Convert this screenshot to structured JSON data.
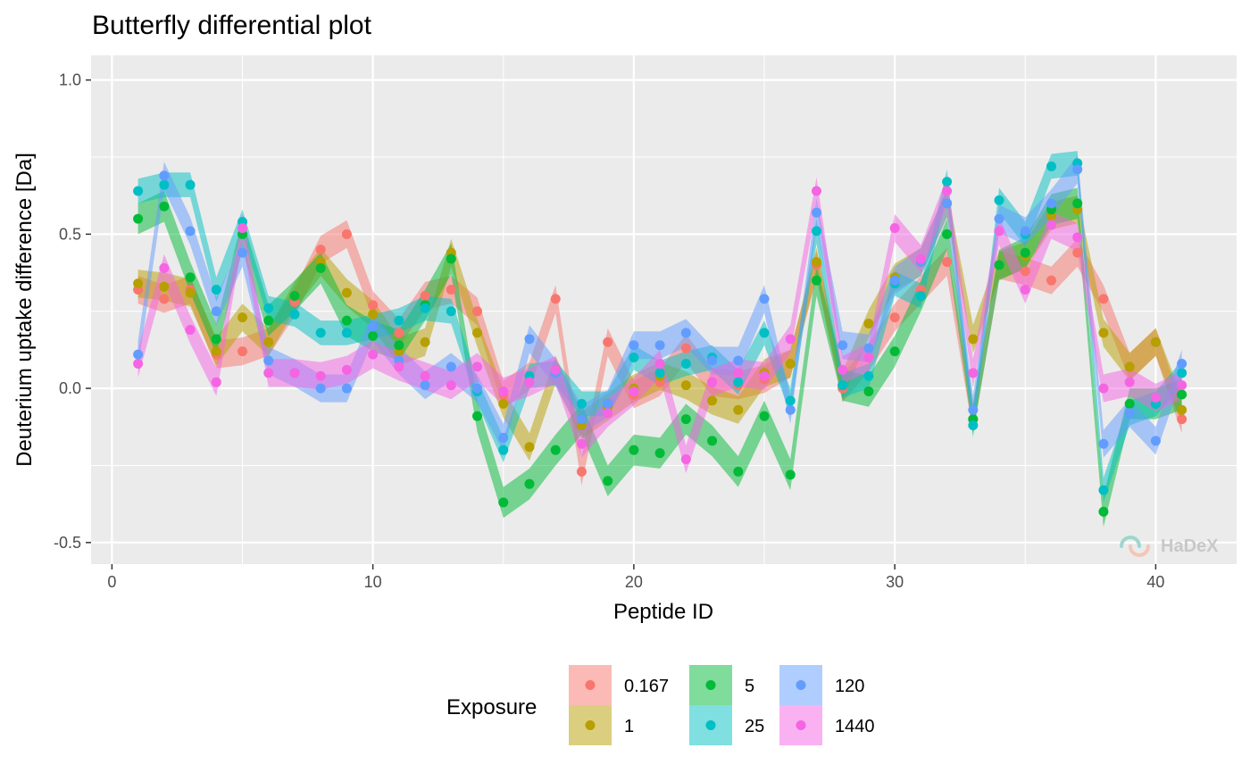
{
  "chart_data": {
    "type": "line",
    "title": "Butterfly differential plot",
    "xlabel": "Peptide ID",
    "ylabel": "Deuterium uptake difference [Da]",
    "xlim": [
      -0.8,
      43.1
    ],
    "ylim": [
      -0.57,
      1.08
    ],
    "x_ticks": [
      0,
      10,
      20,
      30,
      40
    ],
    "y_ticks": [
      1.0,
      0.5,
      0.0,
      -0.5
    ],
    "y_tick_labels": [
      "1.0",
      "0.5",
      "0.0",
      "-0.5"
    ],
    "x_minor_ticks": [
      5,
      15,
      25,
      35
    ],
    "y_minor_ticks": [
      0.75,
      0.25,
      -0.25
    ],
    "grid": true,
    "legend_title": "Exposure",
    "legend_position": "bottom",
    "watermark": "HaDeX",
    "x": [
      1,
      2,
      3,
      4,
      5,
      6,
      7,
      8,
      9,
      10,
      11,
      12,
      13,
      14,
      15,
      16,
      17,
      18,
      19,
      20,
      21,
      22,
      23,
      24,
      25,
      26,
      27,
      28,
      29,
      30,
      31,
      32,
      33,
      34,
      35,
      36,
      37,
      38,
      39,
      40,
      41
    ],
    "series": [
      {
        "name": "0.167",
        "color": "#F8766D",
        "band": 0.045,
        "values": [
          0.32,
          0.29,
          0.32,
          0.11,
          0.12,
          0.15,
          0.28,
          0.45,
          0.5,
          0.27,
          0.18,
          0.3,
          0.32,
          0.25,
          -0.02,
          0.04,
          0.29,
          -0.27,
          0.15,
          -0.02,
          0.02,
          0.13,
          0.02,
          0.01,
          0.03,
          0.08,
          0.4,
          0.0,
          0.1,
          0.23,
          0.32,
          0.41,
          -0.1,
          0.4,
          0.38,
          0.35,
          0.44,
          0.29,
          0.07,
          0.15,
          -0.1
        ]
      },
      {
        "name": "1",
        "color": "#B79F00",
        "band": 0.045,
        "values": [
          0.34,
          0.33,
          0.31,
          0.12,
          0.23,
          0.15,
          0.3,
          0.41,
          0.31,
          0.24,
          0.12,
          0.15,
          0.44,
          0.18,
          -0.05,
          -0.19,
          0.06,
          -0.12,
          -0.06,
          0.0,
          0.04,
          0.01,
          -0.04,
          -0.07,
          0.05,
          0.08,
          0.41,
          0.01,
          0.21,
          0.36,
          0.41,
          0.6,
          0.16,
          0.4,
          0.43,
          0.56,
          0.58,
          0.18,
          0.07,
          0.15,
          -0.07
        ]
      },
      {
        "name": "5",
        "color": "#00BA38",
        "band": 0.05,
        "values": [
          0.55,
          0.59,
          0.36,
          0.16,
          0.5,
          0.22,
          0.3,
          0.39,
          0.22,
          0.17,
          0.14,
          0.27,
          0.42,
          -0.09,
          -0.37,
          -0.31,
          -0.2,
          -0.1,
          -0.3,
          -0.2,
          -0.21,
          -0.1,
          -0.17,
          -0.27,
          -0.09,
          -0.28,
          0.35,
          0.01,
          -0.01,
          0.12,
          0.3,
          0.5,
          -0.1,
          0.4,
          0.44,
          0.58,
          0.6,
          -0.4,
          -0.05,
          -0.05,
          -0.02
        ]
      },
      {
        "name": "25",
        "color": "#00BFC4",
        "band": 0.04,
        "values": [
          0.64,
          0.66,
          0.66,
          0.32,
          0.54,
          0.26,
          0.24,
          0.18,
          0.18,
          0.2,
          0.22,
          0.26,
          0.25,
          -0.01,
          -0.2,
          0.04,
          0.05,
          -0.05,
          -0.05,
          0.1,
          0.05,
          0.08,
          0.1,
          0.02,
          0.18,
          -0.04,
          0.51,
          0.01,
          0.04,
          0.34,
          0.3,
          0.67,
          -0.12,
          0.61,
          0.5,
          0.72,
          0.73,
          -0.33,
          -0.08,
          -0.05,
          0.05
        ]
      },
      {
        "name": "120",
        "color": "#619CFF",
        "band": 0.045,
        "values": [
          0.11,
          0.69,
          0.51,
          0.25,
          0.44,
          0.09,
          0.05,
          0.0,
          0.0,
          0.2,
          0.09,
          0.01,
          0.07,
          0.0,
          -0.16,
          0.16,
          0.05,
          -0.1,
          -0.05,
          0.14,
          0.14,
          0.18,
          0.09,
          0.09,
          0.29,
          -0.07,
          0.57,
          0.14,
          0.13,
          0.35,
          0.41,
          0.6,
          -0.07,
          0.55,
          0.51,
          0.6,
          0.71,
          -0.18,
          -0.08,
          -0.17,
          0.08
        ]
      },
      {
        "name": "1440",
        "color": "#F564E3",
        "band": 0.045,
        "values": [
          0.08,
          0.39,
          0.19,
          0.02,
          0.52,
          0.05,
          0.05,
          0.04,
          0.06,
          0.11,
          0.07,
          0.04,
          0.01,
          0.07,
          -0.01,
          0.02,
          0.06,
          -0.18,
          -0.08,
          -0.01,
          0.08,
          -0.23,
          0.02,
          0.05,
          0.04,
          0.16,
          0.64,
          0.06,
          0.1,
          0.52,
          0.42,
          0.64,
          0.05,
          0.51,
          0.32,
          0.53,
          0.49,
          0.0,
          0.02,
          -0.03,
          0.01
        ]
      }
    ]
  }
}
